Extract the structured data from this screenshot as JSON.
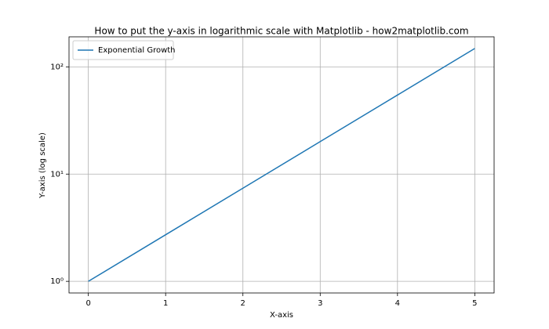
{
  "chart_data": {
    "type": "line",
    "title": "How to put the y-axis in logarithmic scale with Matplotlib - how2matplotlib.com",
    "xlabel": "X-axis",
    "ylabel": "Y-axis (log scale)",
    "x": [
      0,
      1,
      2,
      3,
      4,
      5
    ],
    "series": [
      {
        "name": "Exponential Growth",
        "color": "#1f77b4",
        "values": [
          1,
          2.718,
          7.389,
          20.09,
          54.6,
          148.4
        ]
      }
    ],
    "xlim": [
      -0.25,
      5.25
    ],
    "xticks": [
      0,
      1,
      2,
      3,
      4,
      5
    ],
    "ylim": [
      0.779,
      190.6
    ],
    "yscale": "log",
    "yticks": [
      {
        "value": 1,
        "label": "10⁰"
      },
      {
        "value": 10,
        "label": "10¹"
      },
      {
        "value": 100,
        "label": "10²"
      }
    ],
    "grid": true,
    "legend": "upper left"
  }
}
